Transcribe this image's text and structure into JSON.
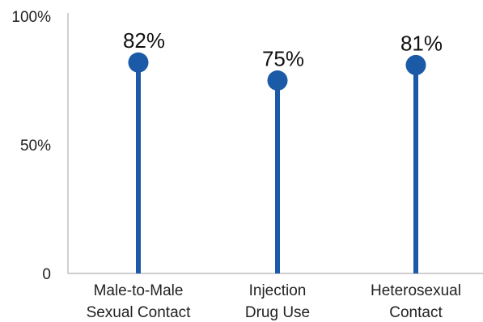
{
  "chart_data": {
    "type": "lollipop",
    "categories": [
      [
        "Male-to-Male",
        "Sexual Contact"
      ],
      [
        "Injection",
        "Drug Use"
      ],
      [
        "Heterosexual",
        "Contact"
      ]
    ],
    "values": [
      82,
      75,
      81
    ],
    "data_labels": [
      "82%",
      "75%",
      "81%"
    ],
    "y_ticks": [
      {
        "value": 0,
        "label": "0"
      },
      {
        "value": 50,
        "label": "50%"
      },
      {
        "value": 100,
        "label": "100%"
      }
    ],
    "ylim": [
      0,
      100
    ],
    "grid": false,
    "legend": "none",
    "colors": {
      "marker": "#1a5aa6",
      "axis": "#b0b0b0",
      "text": "#222222"
    }
  }
}
